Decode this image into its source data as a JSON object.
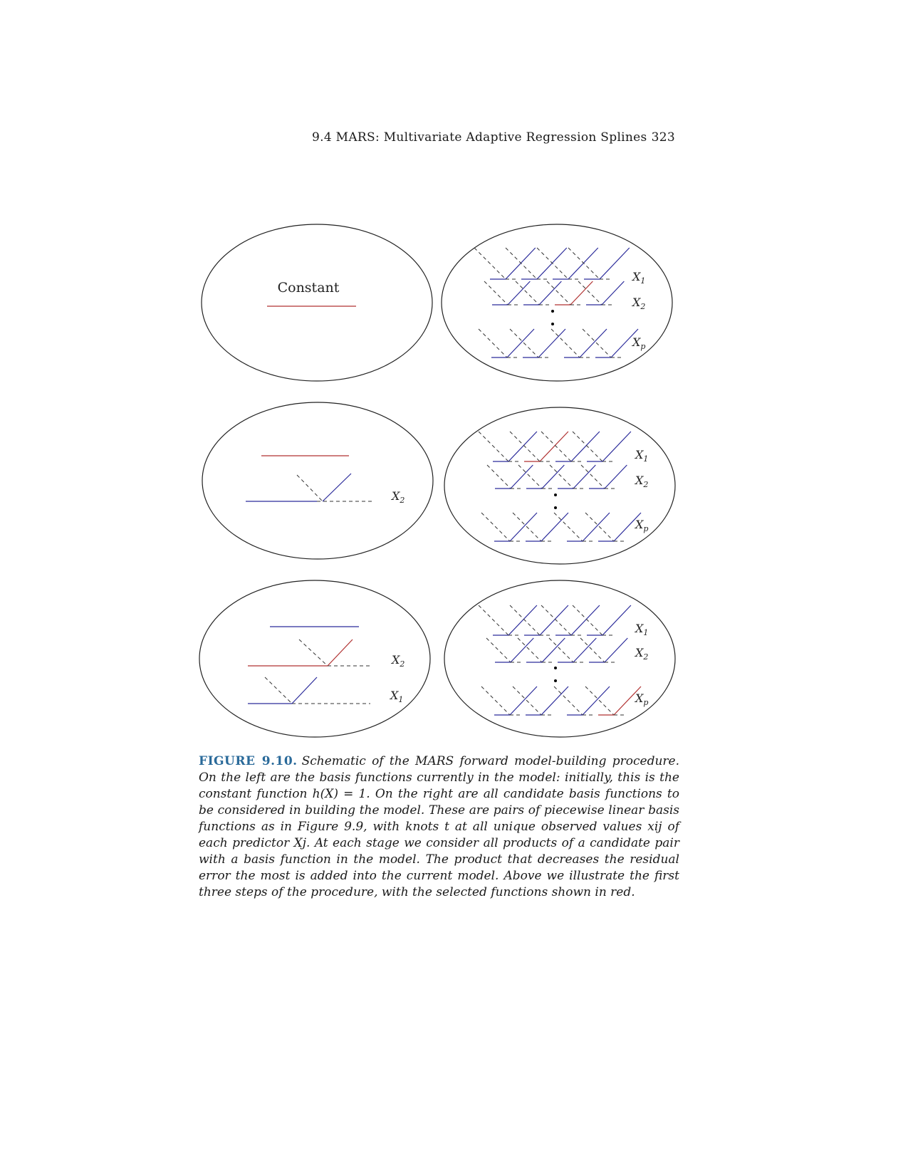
{
  "header": {
    "section": "9.4 MARS: Multivariate Adaptive Regression Splines",
    "page_number": "323"
  },
  "figure": {
    "constant_label": "Constant",
    "var_labels": {
      "x1": "X",
      "x1_sub": "1",
      "x2": "X",
      "x2_sub": "2",
      "xp": "X",
      "xp_sub": "p"
    },
    "colors": {
      "selected": "#b03030",
      "candidate": "#2a2a9a",
      "outline": "#222222",
      "dashed": "#333333"
    }
  },
  "caption": {
    "label": "FIGURE 9.10.",
    "text": "Schematic of the MARS forward model-building procedure. On the left are the basis functions currently in the model: initially, this is the constant function h(X) = 1. On the right are all candidate basis functions to be considered in building the model. These are pairs of piecewise linear basis functions as in Figure 9.9, with knots t at all unique observed values xij of each predictor Xj. At each stage we consider all products of a candidate pair with a basis function in the model. The product that decreases the residual error the most is added into the current model. Above we illustrate the first three steps of the procedure, with the selected functions shown in red."
  }
}
